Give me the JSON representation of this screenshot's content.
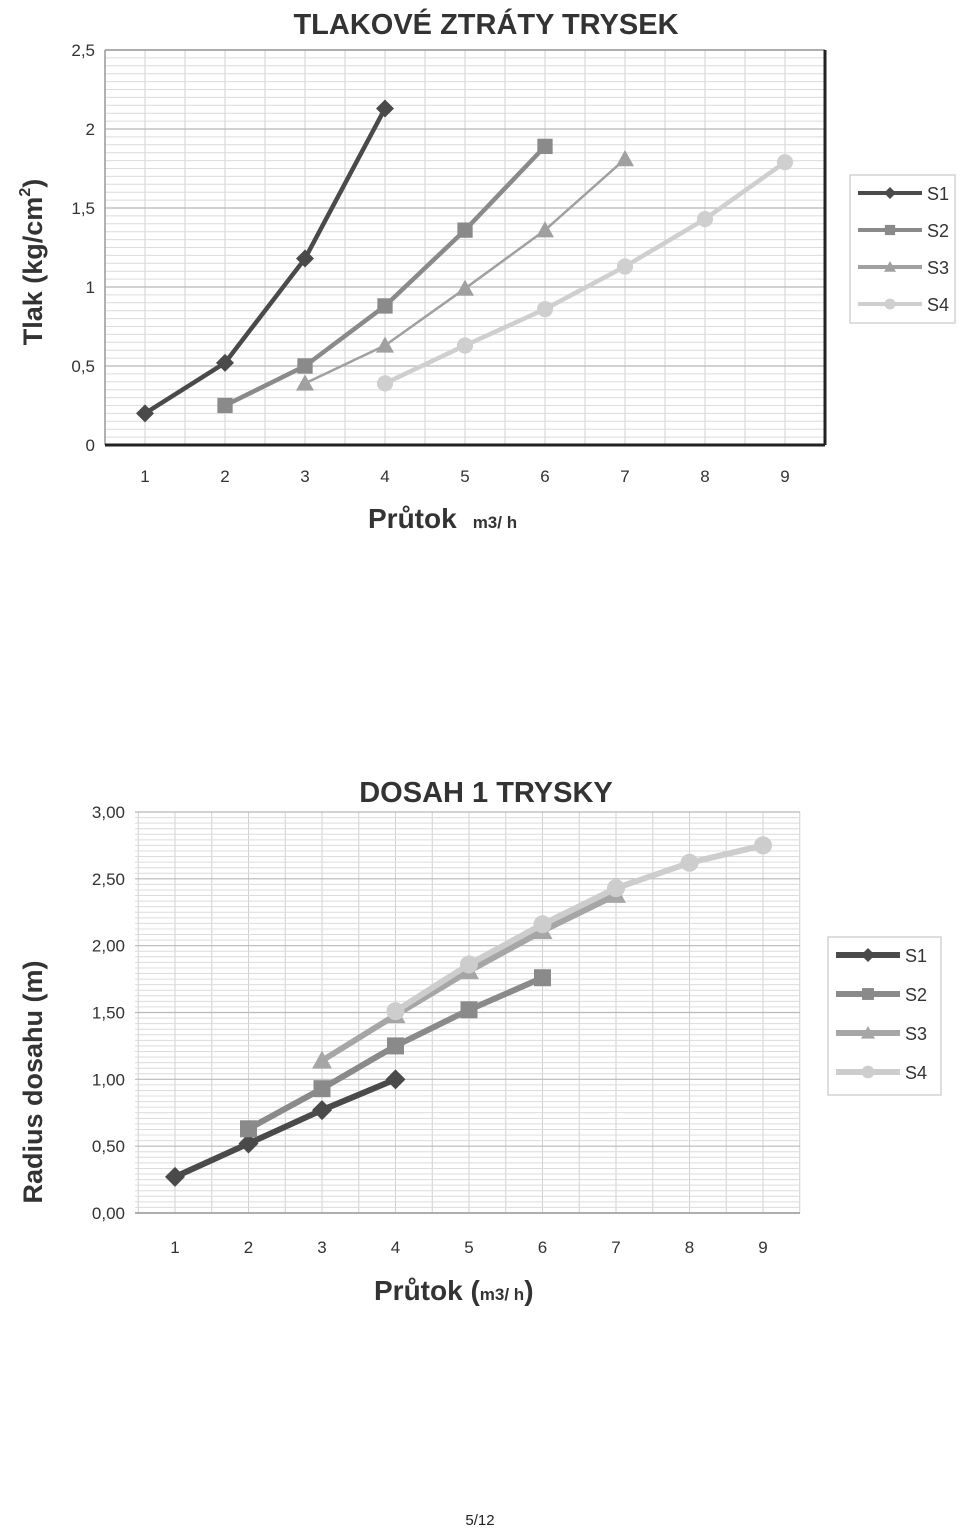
{
  "page_number": "5/12",
  "chart_data": [
    {
      "type": "line",
      "title": "TLAKOVÉ ZTRÁTY TRYSEK",
      "ylabel": "Tlak (kg/cm",
      "ylabel_sup": "2",
      "ylabel_end": ")",
      "xlabel": "Průtok",
      "xlabel_unit": "m3/ h",
      "ylim": [
        0,
        2.5
      ],
      "yticks": [
        "0",
        "0,5",
        "1",
        "1,5",
        "2",
        "2,5"
      ],
      "yticks_values": [
        0,
        0.5,
        1,
        1.5,
        2,
        2.5
      ],
      "xticks": [
        "1",
        "2",
        "3",
        "4",
        "5",
        "6",
        "7",
        "8",
        "9"
      ],
      "grid": true,
      "legend_position": "right",
      "series": [
        {
          "name": "S1",
          "marker": "diamond",
          "color": "#4a4a4a",
          "x": [
            1,
            2,
            3,
            4
          ],
          "y": [
            0.2,
            0.52,
            1.18,
            2.13
          ]
        },
        {
          "name": "S2",
          "marker": "square",
          "color": "#8a8a8a",
          "x": [
            2,
            3,
            4,
            5,
            6
          ],
          "y": [
            0.25,
            0.5,
            0.88,
            1.36,
            1.89
          ]
        },
        {
          "name": "S3",
          "marker": "triangle",
          "color": "#a0a0a0",
          "x": [
            3,
            4,
            5,
            6,
            7
          ],
          "y": [
            0.39,
            0.63,
            0.99,
            1.36,
            1.81
          ]
        },
        {
          "name": "S4",
          "marker": "circle",
          "color": "#cfcfcf",
          "x": [
            4,
            5,
            6,
            7,
            8,
            9
          ],
          "y": [
            0.39,
            0.63,
            0.86,
            1.13,
            1.43,
            1.79
          ]
        }
      ]
    },
    {
      "type": "line",
      "title": "DOSAH 1 TRYSKY",
      "ylabel": "Radius dosahu (m)",
      "xlabel": "Průtok (",
      "xlabel_unit": "m3/ h",
      "xlabel_end": ")",
      "ylim": [
        0,
        3
      ],
      "yticks": [
        "0,00",
        "0,50",
        "1,00",
        "1,50",
        "2,00",
        "2,50",
        "3,00"
      ],
      "yticks_values": [
        0,
        0.5,
        1,
        1.5,
        2,
        2.5,
        3
      ],
      "xticks": [
        "1",
        "2",
        "3",
        "4",
        "5",
        "6",
        "7",
        "8",
        "9"
      ],
      "grid": true,
      "legend_position": "right",
      "series": [
        {
          "name": "S1",
          "marker": "diamond",
          "color": "#4a4a4a",
          "x": [
            1,
            2,
            3,
            4
          ],
          "y": [
            0.27,
            0.52,
            0.77,
            1.0
          ]
        },
        {
          "name": "S2",
          "marker": "square",
          "color": "#8a8a8a",
          "x": [
            2,
            3,
            4,
            5,
            6
          ],
          "y": [
            0.63,
            0.93,
            1.25,
            1.52,
            1.76
          ]
        },
        {
          "name": "S3",
          "marker": "triangle",
          "color": "#a6a6a6",
          "x": [
            3,
            4,
            5,
            6,
            7
          ],
          "y": [
            1.14,
            1.48,
            1.81,
            2.11,
            2.38
          ]
        },
        {
          "name": "S4",
          "marker": "circle",
          "color": "#cdcdcd",
          "x": [
            4,
            5,
            6,
            7,
            8,
            9
          ],
          "y": [
            1.51,
            1.86,
            2.16,
            2.43,
            2.62,
            2.75
          ]
        }
      ]
    }
  ]
}
